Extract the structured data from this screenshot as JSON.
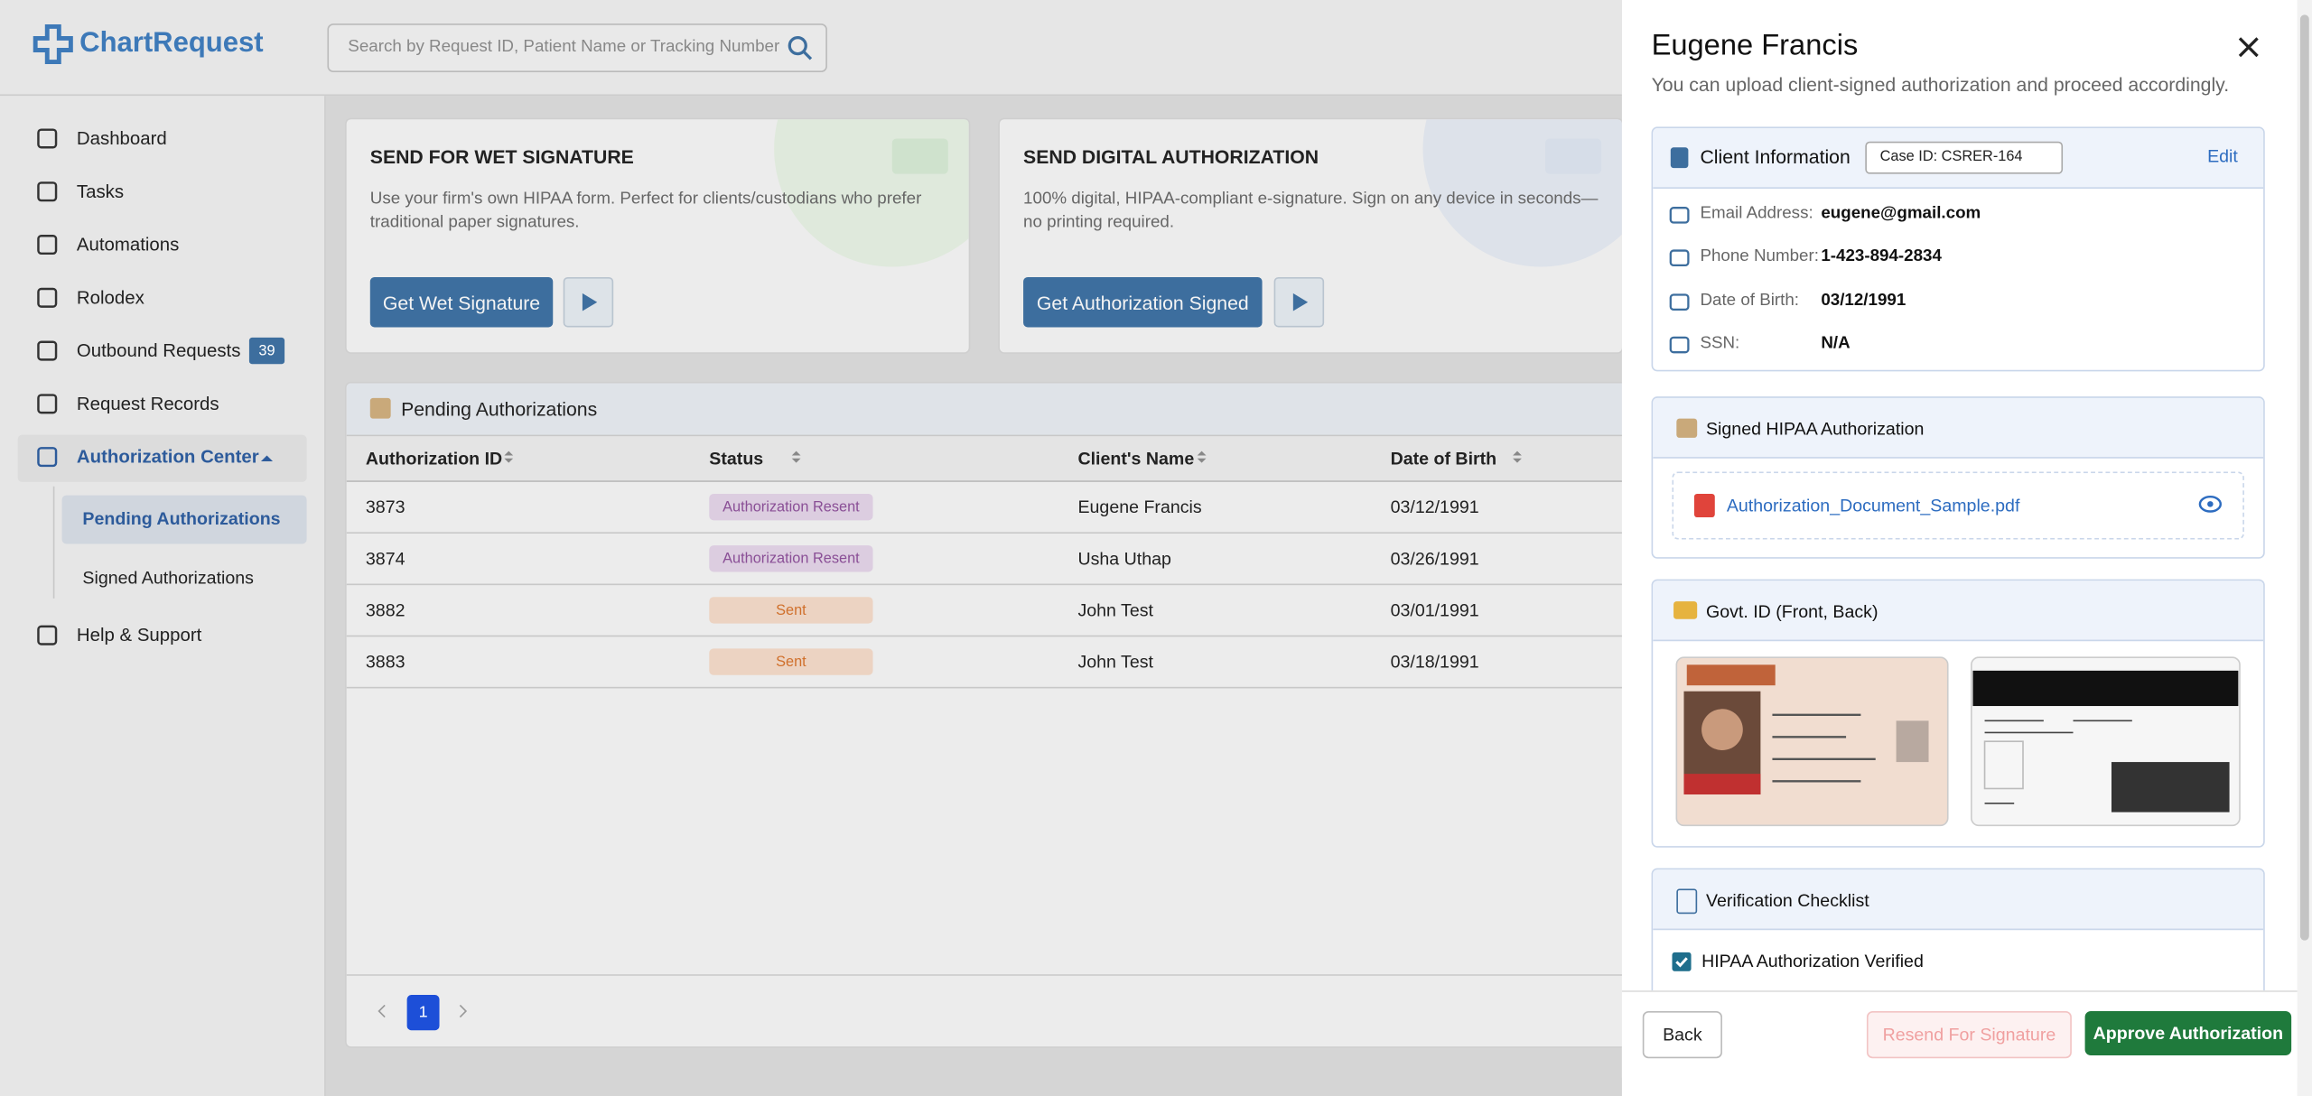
{
  "header": {
    "logo": "ChartRequest",
    "search_placeholder": "Search by Request ID, Patient Name or Tracking Number"
  },
  "sidebar": {
    "items": [
      {
        "label": "Dashboard"
      },
      {
        "label": "Tasks"
      },
      {
        "label": "Automations"
      },
      {
        "label": "Rolodex"
      },
      {
        "label": "Outbound Requests",
        "badge": 39
      },
      {
        "label": "Request Records"
      },
      {
        "label": "Authorization Center"
      },
      {
        "label": "Help & Support"
      }
    ],
    "submenu": [
      "Pending Authorizations",
      "Signed Authorizations"
    ]
  },
  "cards": [
    {
      "title": "SEND FOR WET SIGNATURE",
      "description": "Use your firm's own HIPAA form. Perfect for clients/custodians who prefer traditional paper signatures.",
      "button": "Get Wet Signature"
    },
    {
      "title": "SEND DIGITAL AUTHORIZATION",
      "description": "100% digital, HIPAA-compliant e-signature. Sign on any device in seconds—no printing required.",
      "button": "Get Authorization Signed"
    }
  ],
  "table": {
    "title": "Pending Authorizations",
    "columns": [
      "Authorization ID",
      "Status",
      "Client's Name",
      "Date of Birth"
    ],
    "rows": [
      [
        "3873",
        "Authorization Resent",
        "Eugene Francis",
        "03/12/1991"
      ],
      [
        "3874",
        "Authorization Resent",
        "Usha Uthap",
        "03/26/1991"
      ],
      [
        "3882",
        "Sent",
        "John Test",
        "03/01/1991"
      ],
      [
        "3883",
        "Sent",
        "John Test",
        "03/18/1991"
      ]
    ],
    "page": 1
  },
  "drawer": {
    "title": "Eugene Francis",
    "subtitle": "You can upload client-signed authorization and proceed accordingly.",
    "client_info": {
      "heading": "Client Information",
      "case_id": "Case ID: CSRER-164",
      "edit": "Edit",
      "fields": [
        {
          "label": "Email Address:",
          "value": "eugene@gmail.com"
        },
        {
          "label": "Phone Number:",
          "value": "1-423-894-2834"
        },
        {
          "label": "Date of Birth:",
          "value": "03/12/1991"
        },
        {
          "label": "SSN:",
          "value": "N/A"
        }
      ]
    },
    "hipaa": {
      "heading": "Signed HIPAA Authorization",
      "file": "Authorization_Document_Sample.pdf"
    },
    "govt_id": {
      "heading": "Govt. ID (Front, Back)"
    },
    "checklist": {
      "heading": "Verification Checklist",
      "items": [
        "HIPAA Authorization Verified"
      ]
    },
    "footer": {
      "back": "Back",
      "resend": "Resend For Signature",
      "approve": "Approve Authorization"
    }
  }
}
